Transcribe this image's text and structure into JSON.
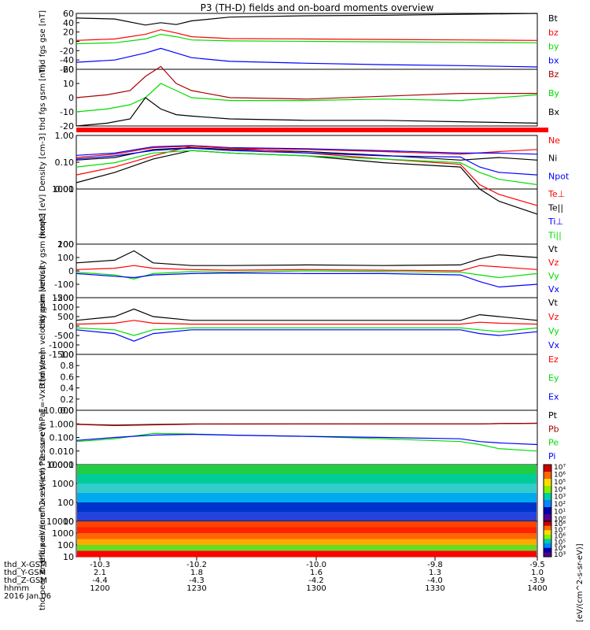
{
  "title": "P3 (TH-D) fields and on-board moments overview",
  "footer": {
    "row_labels": [
      "thd_X-GSM",
      "thd_Y-GSM",
      "thd_Z-GSM",
      "hhmm",
      "2016 Jan 06"
    ],
    "columns": [
      [
        "-10.3",
        "2.1",
        "-4.4",
        "1200"
      ],
      [
        "-10.2",
        "1.8",
        "-4.3",
        "1230"
      ],
      [
        "-10.0",
        "1.6",
        "-4.2",
        "1300"
      ],
      [
        "-9.8",
        "1.3",
        "-4.0",
        "1330"
      ],
      [
        "-9.5",
        "1.0",
        "-3.9",
        "1400"
      ]
    ]
  },
  "colorbar_labels": {
    "ions": "eV/(cm^2-s-sr-eV)) (All Qs)",
    "bottom": "[eV/(cm^2-s-sr-eV)]"
  },
  "colors": {
    "black": "#000000",
    "red": "#ff0000",
    "green": "#00dd00",
    "blue": "#0000ff",
    "darkred": "#aa0000"
  },
  "chart_data": [
    {
      "type": "line",
      "ylabel": "thd fgs gse [nT]",
      "yticks": [
        "60",
        "40",
        "20",
        "0",
        "-20",
        "-40",
        "-60"
      ],
      "legend": [
        {
          "name": "Bt",
          "color": "#000000"
        },
        {
          "name": "bz",
          "color": "#ff0000"
        },
        {
          "name": "by",
          "color": "#00dd00"
        },
        {
          "name": "bx",
          "color": "#0000ff"
        }
      ],
      "x": [
        0,
        10,
        18,
        22,
        26,
        30,
        40,
        60,
        80,
        100,
        120
      ],
      "series": [
        {
          "name": "Bt",
          "values": [
            50,
            48,
            35,
            40,
            36,
            44,
            52,
            55,
            56,
            58,
            60
          ]
        },
        {
          "name": "bz",
          "values": [
            2,
            5,
            15,
            25,
            18,
            10,
            6,
            5,
            4,
            3,
            2
          ]
        },
        {
          "name": "by",
          "values": [
            -5,
            -3,
            5,
            15,
            10,
            3,
            1,
            0,
            -1,
            -2,
            -3
          ]
        },
        {
          "name": "bx",
          "values": [
            -45,
            -40,
            -25,
            -15,
            -25,
            -35,
            -43,
            -47,
            -50,
            -52,
            -55
          ]
        }
      ]
    },
    {
      "type": "line",
      "ylabel": "thd fgs gsm [nT]",
      "yticks": [
        "20",
        "10",
        "0",
        "-10",
        "-20"
      ],
      "legend": [
        {
          "name": "Bz",
          "color": "#aa0000"
        },
        {
          "name": "By",
          "color": "#00dd00"
        },
        {
          "name": "Bx",
          "color": "#000000"
        }
      ],
      "x": [
        0,
        8,
        14,
        18,
        22,
        26,
        30,
        40,
        60,
        80,
        100,
        120
      ],
      "series": [
        {
          "name": "Bz",
          "values": [
            0,
            2,
            5,
            15,
            22,
            10,
            5,
            0,
            -1,
            1,
            3,
            3
          ]
        },
        {
          "name": "By",
          "values": [
            -10,
            -8,
            -5,
            0,
            10,
            5,
            0,
            -2,
            -2,
            -1,
            -2,
            2
          ]
        },
        {
          "name": "Bx",
          "values": [
            -20,
            -18,
            -15,
            0,
            -8,
            -12,
            -13,
            -15,
            -16,
            -16,
            -17,
            -18
          ]
        }
      ]
    },
    {
      "type": "line",
      "ylabel": "Density [cm-3]",
      "yticks": [
        "1.00",
        "0.10",
        "0.01"
      ],
      "log": true,
      "legend": [
        {
          "name": "Ne",
          "color": "#ff0000"
        },
        {
          "name": "Ni",
          "color": "#000000"
        },
        {
          "name": "Npot",
          "color": "#0000ff"
        }
      ],
      "x": [
        0,
        10,
        20,
        30,
        40,
        60,
        80,
        100,
        110,
        120
      ],
      "series": [
        {
          "name": "Ne",
          "values": [
            0.15,
            0.2,
            0.35,
            0.4,
            0.33,
            0.3,
            0.25,
            0.2,
            0.25,
            0.3
          ]
        },
        {
          "name": "Ni",
          "values": [
            0.12,
            0.15,
            0.3,
            0.35,
            0.3,
            0.25,
            0.18,
            0.12,
            0.15,
            0.12
          ]
        },
        {
          "name": "Npot",
          "values": [
            0.18,
            0.22,
            0.38,
            0.42,
            0.35,
            0.32,
            0.27,
            0.22,
            0.22,
            0.2
          ]
        }
      ]
    },
    {
      "type": "line",
      "ylabel": "moqt3 [eV]",
      "yticks": [
        "1000",
        "100"
      ],
      "log": true,
      "legend": [
        {
          "name": "Te⊥",
          "color": "#ff0000"
        },
        {
          "name": "Te||",
          "color": "#000000"
        },
        {
          "name": "Ti⊥",
          "color": "#0000ff"
        },
        {
          "name": "Ti||",
          "color": "#00dd00"
        }
      ],
      "x": [
        0,
        10,
        20,
        30,
        40,
        60,
        80,
        100,
        105,
        110,
        120
      ],
      "series": [
        {
          "name": "Te⊥",
          "values": [
            1800,
            2500,
            4000,
            6000,
            5500,
            4500,
            3500,
            2800,
            1200,
            800,
            500
          ]
        },
        {
          "name": "Te||",
          "values": [
            1300,
            2000,
            3500,
            5000,
            4500,
            4000,
            3000,
            2500,
            1000,
            600,
            350
          ]
        },
        {
          "name": "Ti⊥",
          "values": [
            3500,
            4000,
            5000,
            5500,
            5000,
            4500,
            4000,
            3800,
            2500,
            2000,
            1800
          ]
        },
        {
          "name": "Ti||",
          "values": [
            2500,
            3000,
            4500,
            5000,
            4500,
            4000,
            3500,
            3000,
            2000,
            1500,
            1200
          ]
        }
      ]
    },
    {
      "type": "line",
      "ylabel": "thd peim velocity gsm [km/s]",
      "yticks": [
        "200",
        "100",
        "0",
        "-100",
        "-200"
      ],
      "legend": [
        {
          "name": "Vt",
          "color": "#000000"
        },
        {
          "name": "Vz",
          "color": "#ff0000"
        },
        {
          "name": "Vy",
          "color": "#00dd00"
        },
        {
          "name": "Vx",
          "color": "#0000ff"
        }
      ],
      "x": [
        0,
        10,
        15,
        20,
        30,
        40,
        60,
        80,
        100,
        105,
        110,
        120
      ],
      "series": [
        {
          "name": "Vt",
          "values": [
            60,
            80,
            150,
            60,
            40,
            40,
            45,
            40,
            45,
            90,
            120,
            100
          ]
        },
        {
          "name": "Vz",
          "values": [
            10,
            20,
            40,
            20,
            10,
            5,
            10,
            5,
            0,
            40,
            30,
            10
          ]
        },
        {
          "name": "Vy",
          "values": [
            -10,
            -30,
            -60,
            -20,
            -5,
            -10,
            0,
            -5,
            -10,
            -30,
            -50,
            -20
          ]
        },
        {
          "name": "Vx",
          "values": [
            -20,
            -40,
            -50,
            -30,
            -20,
            -15,
            -20,
            -20,
            -30,
            -80,
            -120,
            -100
          ]
        }
      ]
    },
    {
      "type": "line",
      "ylabel": "thd peem velocity gsm [km/s]",
      "yticks": [
        "1500",
        "1000",
        "500",
        "0",
        "-500",
        "-1000",
        "-1500"
      ],
      "legend": [
        {
          "name": "Vt",
          "color": "#000000"
        },
        {
          "name": "Vz",
          "color": "#ff0000"
        },
        {
          "name": "Vy",
          "color": "#00dd00"
        },
        {
          "name": "Vx",
          "color": "#0000ff"
        }
      ],
      "x": [
        0,
        10,
        15,
        20,
        30,
        40,
        60,
        80,
        100,
        105,
        110,
        120
      ],
      "series": [
        {
          "name": "Vt",
          "values": [
            300,
            500,
            900,
            500,
            300,
            300,
            300,
            300,
            300,
            600,
            500,
            300
          ]
        },
        {
          "name": "Vz",
          "values": [
            100,
            150,
            300,
            150,
            100,
            100,
            100,
            100,
            100,
            200,
            150,
            100
          ]
        },
        {
          "name": "Vy",
          "values": [
            -100,
            -200,
            -500,
            -200,
            -100,
            -100,
            -100,
            -100,
            -100,
            -200,
            -300,
            -100
          ]
        },
        {
          "name": "Vx",
          "values": [
            -200,
            -400,
            -800,
            -400,
            -200,
            -200,
            -200,
            -200,
            -200,
            -400,
            -500,
            -300
          ]
        }
      ]
    },
    {
      "type": "line",
      "ylabel": "E=-VxB [mV/m]",
      "yticks": [
        "1.0",
        "0.8",
        "0.6",
        "0.4",
        "0.2",
        "0.0"
      ],
      "legend": [
        {
          "name": "Ez",
          "color": "#ff0000"
        },
        {
          "name": "Ey",
          "color": "#00dd00"
        },
        {
          "name": "Ex",
          "color": "#0000ff"
        }
      ],
      "x": [],
      "series": []
    },
    {
      "type": "line",
      "ylabel": "Pressure [nPa]",
      "yticks": [
        "10.000",
        "1.000",
        "0.100",
        "0.010",
        "0.001"
      ],
      "log": true,
      "legend": [
        {
          "name": "Pt",
          "color": "#000000"
        },
        {
          "name": "Pb",
          "color": "#aa0000"
        },
        {
          "name": "Pe",
          "color": "#00dd00"
        },
        {
          "name": "Pi",
          "color": "#0000ff"
        }
      ],
      "x": [
        0,
        10,
        20,
        30,
        40,
        60,
        80,
        100,
        105,
        110,
        120
      ],
      "series": [
        {
          "name": "Pt",
          "values": [
            0.95,
            0.8,
            0.9,
            1.0,
            1.0,
            1.0,
            1.0,
            1.0,
            1.0,
            1.05,
            1.1
          ]
        },
        {
          "name": "Pb",
          "values": [
            0.92,
            0.75,
            0.85,
            0.95,
            0.97,
            0.98,
            0.99,
            1.0,
            1.0,
            1.05,
            1.1
          ]
        },
        {
          "name": "Pe",
          "values": [
            0.05,
            0.08,
            0.2,
            0.18,
            0.15,
            0.12,
            0.08,
            0.05,
            0.03,
            0.015,
            0.01
          ]
        },
        {
          "name": "Pi",
          "values": [
            0.06,
            0.1,
            0.15,
            0.17,
            0.15,
            0.12,
            0.1,
            0.08,
            0.05,
            0.04,
            0.03
          ]
        }
      ]
    },
    {
      "type": "heatmap",
      "ylabel": "thd peir en eflux eV/(cm^2-s-sr-eV)",
      "yticks": [
        "10000",
        "1000",
        "100",
        "10"
      ],
      "colorbar_ticks": [
        "10⁷",
        "10⁶",
        "10⁵",
        "10⁴",
        "10³",
        "10²",
        "10¹",
        "10⁰"
      ]
    },
    {
      "type": "heatmap",
      "ylabel": "thd peer en eflux eV/(cm^2-s-sr-eV)",
      "yticks": [
        "10000",
        "1000",
        "100",
        "10"
      ],
      "colorbar_ticks": [
        "10⁸",
        "10⁷",
        "10⁶",
        "10⁵",
        "10⁴",
        "10³"
      ]
    }
  ]
}
